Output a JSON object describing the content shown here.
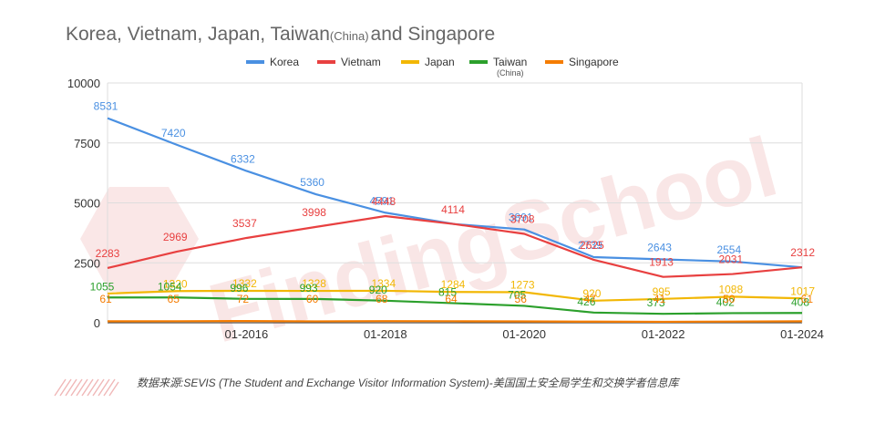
{
  "chart_data": {
    "type": "line",
    "title_main": "Korea, Vietnam, Japan, Taiwan",
    "title_paren": "(China)",
    "title_end": "and Singapore",
    "x_tick_labels": [
      "01-2016",
      "01-2018",
      "01-2020",
      "01-2022",
      "01-2024"
    ],
    "x": [
      2014,
      2015,
      2016,
      2017,
      2018,
      2019,
      2020,
      2021,
      2022,
      2023,
      2024
    ],
    "xlim": [
      2014,
      2024
    ],
    "ylim": [
      0,
      10000
    ],
    "y_ticks": [
      0,
      2500,
      5000,
      7500,
      10000
    ],
    "grid": true,
    "legend_position": "top",
    "series": [
      {
        "name": "Korea",
        "color": "#4a90e2",
        "values": [
          8531,
          7420,
          6332,
          5360,
          4591,
          4114,
          3891,
          2739,
          2643,
          2554,
          2312
        ],
        "labels": [
          "8531",
          "7420",
          "6332",
          "5360",
          "4591",
          "",
          "3891",
          "2739",
          "2643",
          "2554",
          ""
        ]
      },
      {
        "name": "Vietnam",
        "color": "#e84040",
        "values": [
          2283,
          2969,
          3537,
          3998,
          4448,
          4114,
          3708,
          2625,
          1913,
          2031,
          2312
        ],
        "labels": [
          "2283",
          "2969",
          "3537",
          "3998",
          "4448",
          "4114",
          "3708",
          "2625",
          "1913",
          "2031",
          "2312"
        ]
      },
      {
        "name": "Japan",
        "color": "#f2b705",
        "values": [
          1220,
          1320,
          1332,
          1328,
          1334,
          1284,
          1273,
          920,
          995,
          1088,
          1017
        ],
        "labels": [
          "",
          "1320",
          "1332",
          "1328",
          "1334",
          "1284",
          "1273",
          "920",
          "995",
          "1088",
          "1017"
        ]
      },
      {
        "name": "Taiwan",
        "name_sub": "(China)",
        "color": "#2ca02c",
        "values": [
          1055,
          1054,
          996,
          993,
          920,
          815,
          705,
          426,
          373,
          402,
          408
        ],
        "labels": [
          "1055",
          "1054",
          "996",
          "993",
          "920",
          "815",
          "705",
          "426",
          "373",
          "402",
          "408"
        ]
      },
      {
        "name": "Singapore",
        "color": "#f57c00",
        "values": [
          61,
          65,
          72,
          60,
          68,
          64,
          56,
          47,
          41,
          50,
          61
        ],
        "labels": [
          "61",
          "65",
          "72",
          "60",
          "68",
          "64",
          "56",
          "47",
          "41",
          "50",
          "61"
        ]
      }
    ],
    "source": "数据来源:SEVIS (The Student and Exchange Visitor Information System)-美国国土安全局学生和交换学者信息库",
    "watermark": "FindingSchool"
  }
}
